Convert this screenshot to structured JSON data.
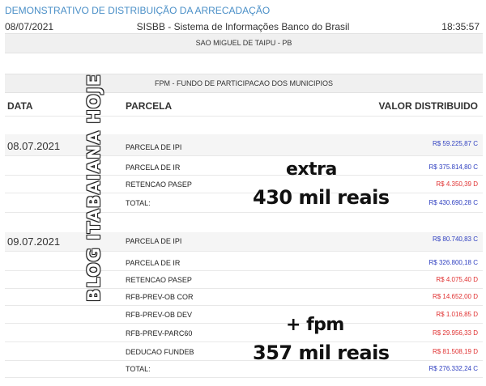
{
  "header": {
    "title": "DEMONSTRATIVO DE DISTRIBUIÇÃO DA ARRECADAÇÃO",
    "date": "08/07/2021",
    "system": "SISBB - Sistema de Informações Banco do Brasil",
    "time": "18:35:57"
  },
  "municipality": "SAO MIGUEL DE TAIPU - PB",
  "fund": "FPM - FUNDO DE PARTICIPACAO DOS MUNICIPIOS",
  "columns": {
    "date": "DATA",
    "parcel": "PARCELA",
    "value": "VALOR DISTRIBUIDO"
  },
  "blocks": [
    {
      "date": "08.07.2021",
      "rows": [
        {
          "parcel": "PARCELA DE IPI",
          "value": "R$ 59.225,87 C",
          "color": "#3040c0"
        },
        {
          "parcel": "PARCELA DE IR",
          "value": "R$ 375.814,80 C",
          "color": "#3040c0"
        },
        {
          "parcel": "RETENCAO PASEP",
          "value": "R$ 4.350,39 D",
          "color": "#e03030"
        },
        {
          "parcel": "TOTAL:",
          "value": "R$ 430.690,28 C",
          "color": "#3040c0"
        }
      ]
    },
    {
      "date": "09.07.2021",
      "rows": [
        {
          "parcel": "PARCELA DE IPI",
          "value": "R$ 80.740,83 C",
          "color": "#3040c0"
        },
        {
          "parcel": "PARCELA DE IR",
          "value": "R$ 326.800,18 C",
          "color": "#3040c0"
        },
        {
          "parcel": "RETENCAO PASEP",
          "value": "R$ 4.075,40 D",
          "color": "#e03030"
        },
        {
          "parcel": "RFB-PREV-OB COR",
          "value": "R$ 14.652,00 D",
          "color": "#e03030"
        },
        {
          "parcel": "RFB-PREV-OB DEV",
          "value": "R$ 1.016,85 D",
          "color": "#e03030"
        },
        {
          "parcel": "RFB-PREV-PARC60",
          "value": "R$ 29.956,33 D",
          "color": "#e03030"
        },
        {
          "parcel": "DEDUCAO FUNDEB",
          "value": "R$ 81.508,19 D",
          "color": "#e03030"
        },
        {
          "parcel": "TOTAL:",
          "value": "R$ 276.332,24 C",
          "color": "#3040c0"
        }
      ]
    }
  ],
  "overlay": {
    "extra_word": "extra",
    "extra_amount": "430 mil reais",
    "fpm_word": "+ fpm",
    "fpm_amount": "357 mil reais"
  },
  "watermark": "BLOG ITABAIANA HOJE"
}
